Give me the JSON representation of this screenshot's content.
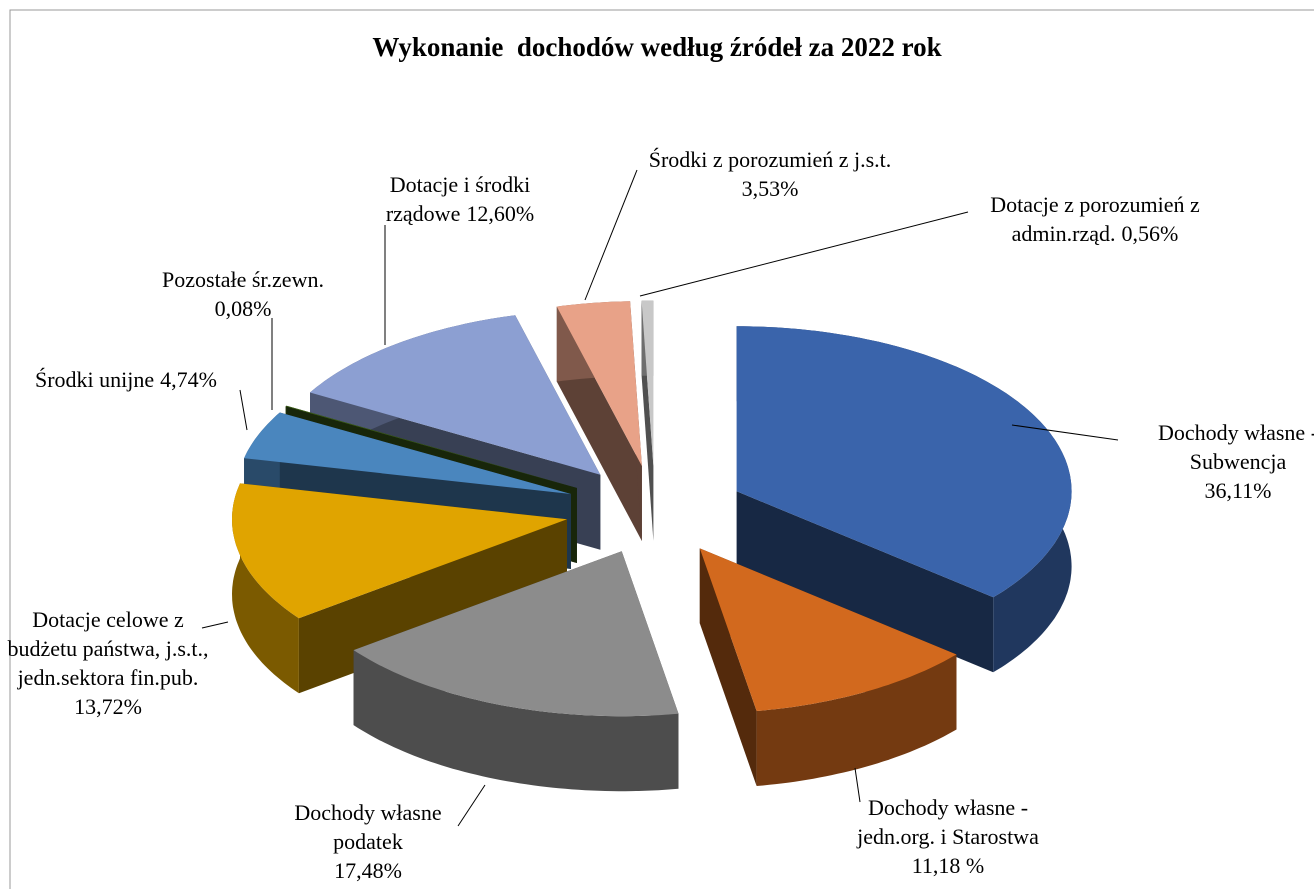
{
  "chart_data": {
    "type": "pie3d",
    "title": "Wykonanie  dochodów według źródeł za 2022 rok",
    "categories": [
      "Dochody własne - Subwencja",
      "Dochody własne - jedn.org. i Starostwa",
      "Dochody własne podatek",
      "Dotacje celowe z budżetu państwa, j.s.t., jedn.sektora fin.pub.",
      "Środki unijne",
      "Pozostałe śr.zewn.",
      "Dotacje i środki rządowe",
      "Środki z porozumień z j.s.t.",
      "Dotacje z porozumień z admin.rząd."
    ],
    "values": [
      36.11,
      11.18,
      17.48,
      13.72,
      4.74,
      0.08,
      12.6,
      3.53,
      0.56
    ],
    "value_labels": [
      "36,11%",
      "11,18 %",
      "17,48%",
      "13,72%",
      "4,74%",
      "0,08%",
      "12,60%",
      "3,53%",
      "0,56%"
    ],
    "colors": [
      "#3a64ab",
      "#d2691e",
      "#8c8c8c",
      "#e0a400",
      "#4a86be",
      "#3d6018",
      "#8c9fd2",
      "#e8a288",
      "#c8c8c8"
    ]
  }
}
